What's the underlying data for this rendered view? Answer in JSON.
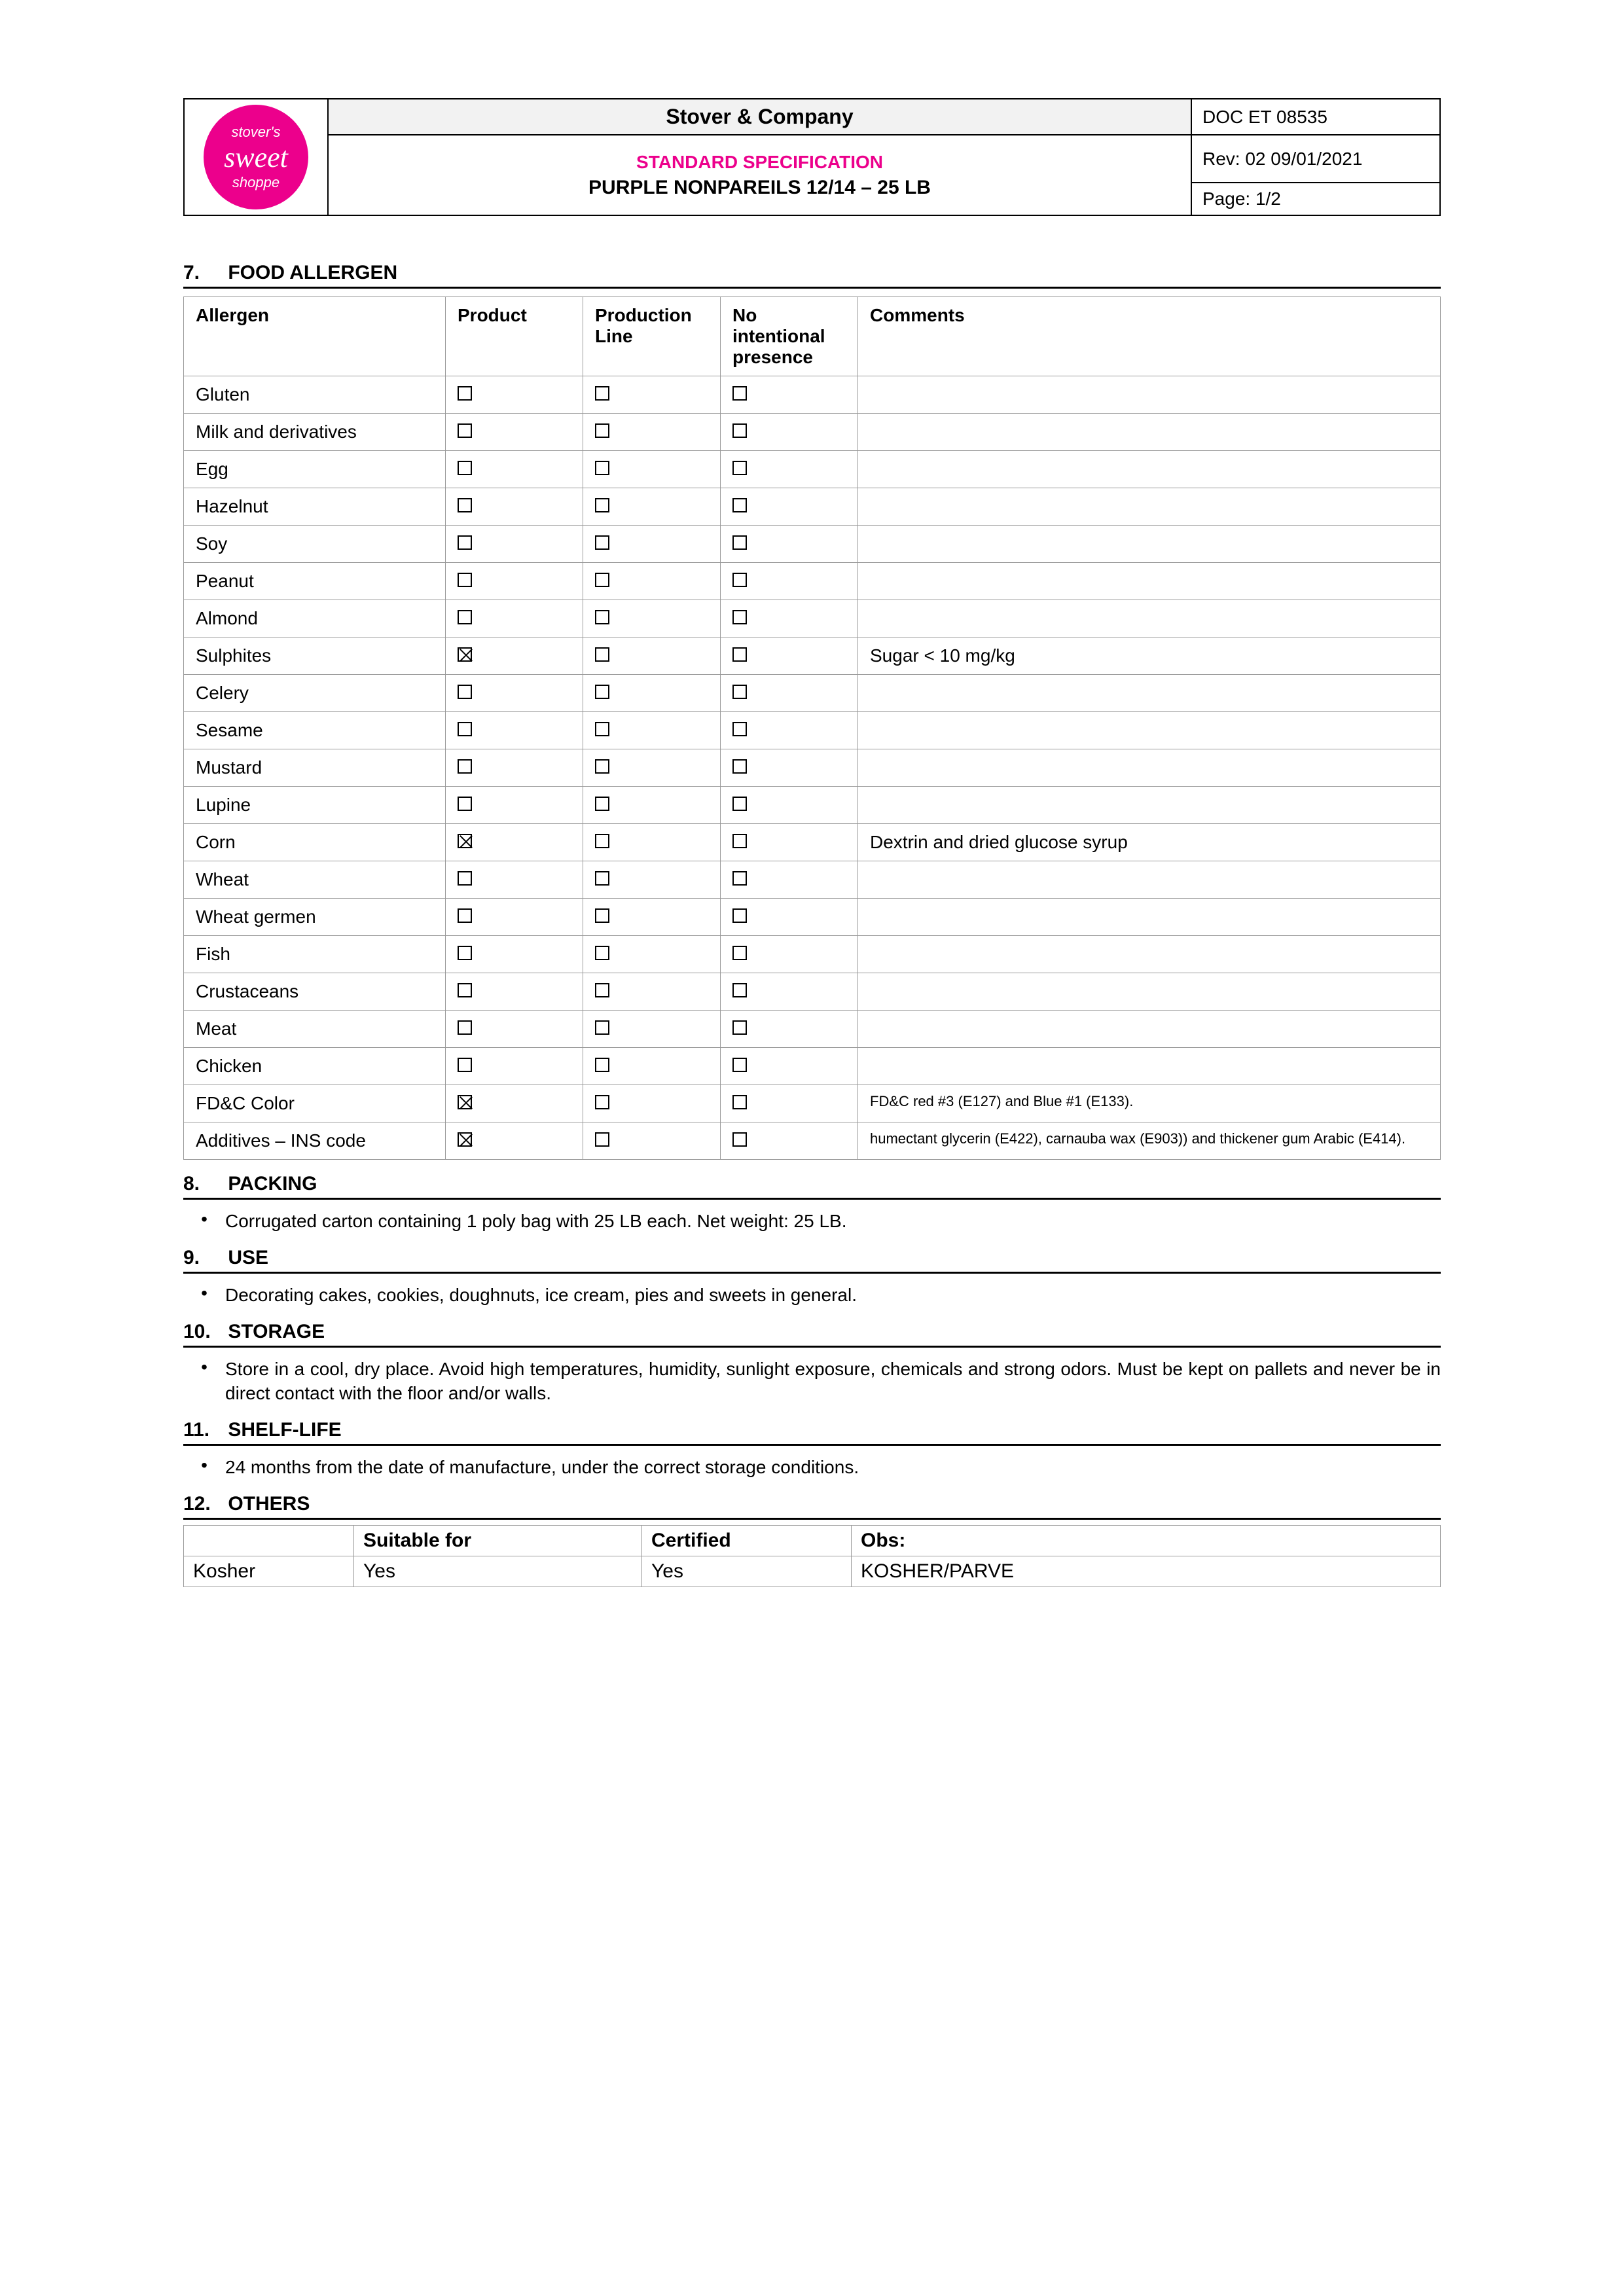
{
  "logo": {
    "line1": "stover's",
    "line2": "sweet",
    "line3": "shoppe"
  },
  "header": {
    "company": "Stover & Company",
    "spec_title": "STANDARD SPECIFICATION",
    "spec_sub": "PURPLE NONPAREILS 12/14 – 25 LB",
    "doc": "DOC ET 08535",
    "rev": "Rev: 02 09/01/2021",
    "page": "Page: 1/2"
  },
  "section7": {
    "num": "7.",
    "title": "FOOD ALLERGEN",
    "columns": [
      "Allergen",
      "Product",
      "Production Line",
      "No intentional presence",
      "Comments"
    ],
    "rows": [
      {
        "name": "Gluten",
        "p": false,
        "pl": false,
        "ni": false,
        "c": ""
      },
      {
        "name": "Milk and derivatives",
        "p": false,
        "pl": false,
        "ni": false,
        "c": ""
      },
      {
        "name": "Egg",
        "p": false,
        "pl": false,
        "ni": false,
        "c": ""
      },
      {
        "name": "Hazelnut",
        "p": false,
        "pl": false,
        "ni": false,
        "c": ""
      },
      {
        "name": "Soy",
        "p": false,
        "pl": false,
        "ni": false,
        "c": ""
      },
      {
        "name": "Peanut",
        "p": false,
        "pl": false,
        "ni": false,
        "c": ""
      },
      {
        "name": "Almond",
        "p": false,
        "pl": false,
        "ni": false,
        "c": ""
      },
      {
        "name": "Sulphites",
        "p": true,
        "pl": false,
        "ni": false,
        "c": "Sugar < 10 mg/kg"
      },
      {
        "name": "Celery",
        "p": false,
        "pl": false,
        "ni": false,
        "c": ""
      },
      {
        "name": "Sesame",
        "p": false,
        "pl": false,
        "ni": false,
        "c": ""
      },
      {
        "name": "Mustard",
        "p": false,
        "pl": false,
        "ni": false,
        "c": ""
      },
      {
        "name": "Lupine",
        "p": false,
        "pl": false,
        "ni": false,
        "c": ""
      },
      {
        "name": "Corn",
        "p": true,
        "pl": false,
        "ni": false,
        "c": "Dextrin and dried glucose syrup"
      },
      {
        "name": "Wheat",
        "p": false,
        "pl": false,
        "ni": false,
        "c": ""
      },
      {
        "name": "Wheat germen",
        "p": false,
        "pl": false,
        "ni": false,
        "c": ""
      },
      {
        "name": "Fish",
        "p": false,
        "pl": false,
        "ni": false,
        "c": ""
      },
      {
        "name": "Crustaceans",
        "p": false,
        "pl": false,
        "ni": false,
        "c": ""
      },
      {
        "name": "Meat",
        "p": false,
        "pl": false,
        "ni": false,
        "c": ""
      },
      {
        "name": "Chicken",
        "p": false,
        "pl": false,
        "ni": false,
        "c": ""
      },
      {
        "name": "FD&C Color",
        "p": true,
        "pl": false,
        "ni": false,
        "c": "FD&C red #3 (E127) and Blue #1 (E133).",
        "small": true
      },
      {
        "name": "Additives – INS code",
        "p": true,
        "pl": false,
        "ni": false,
        "c": "humectant glycerin (E422), carnauba wax (E903)) and thickener gum Arabic (E414).",
        "small": true
      }
    ]
  },
  "section8": {
    "num": "8.",
    "title": "PACKING",
    "bullet": "Corrugated carton containing 1 poly bag with 25 LB each. Net weight: 25 LB."
  },
  "section9": {
    "num": "9.",
    "title": "USE",
    "bullet": "Decorating cakes, cookies, doughnuts, ice cream, pies and sweets in general."
  },
  "section10": {
    "num": "10.",
    "title": "STORAGE",
    "bullet": "Store in a cool, dry place. Avoid high temperatures, humidity, sunlight exposure, chemicals and strong odors. Must be kept on pallets and never be in direct contact with the floor and/or walls."
  },
  "section11": {
    "num": "11.",
    "title": "SHELF-LIFE",
    "bullet": "24 months from the date of manufacture, under the correct storage conditions."
  },
  "section12": {
    "num": "12.",
    "title": "OTHERS",
    "columns": [
      "",
      "Suitable for",
      "Certified",
      "Obs:"
    ],
    "row": {
      "name": "Kosher",
      "suitable": "Yes",
      "certified": "Yes",
      "obs": "KOSHER/PARVE"
    }
  }
}
